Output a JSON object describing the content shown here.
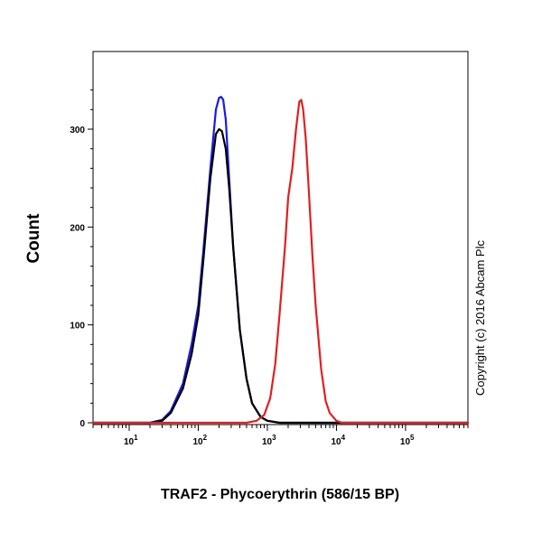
{
  "chart_data": {
    "type": "line",
    "title": "",
    "xlabel": "TRAF2 - Phycoerythrin (586/15 BP)",
    "ylabel": "Count",
    "x_scale": "log",
    "xlim": [
      3,
      800000
    ],
    "ylim": [
      0,
      350
    ],
    "x_ticks": [
      {
        "value": 10,
        "base": "10",
        "exp": "1"
      },
      {
        "value": 100,
        "base": "10",
        "exp": "2"
      },
      {
        "value": 1000,
        "base": "10",
        "exp": "3"
      },
      {
        "value": 10000,
        "base": "10",
        "exp": "4"
      },
      {
        "value": 100000,
        "base": "10",
        "exp": "5"
      }
    ],
    "y_ticks": [
      "0",
      "100",
      "200",
      "300"
    ],
    "grid": false,
    "legend": "none",
    "annotation": "Copyright (c) 2016 Abcam Plc",
    "series": [
      {
        "color": "#1a1ae6",
        "x": [
          3,
          20,
          30,
          40,
          60,
          80,
          100,
          120,
          150,
          180,
          200,
          215,
          230,
          250,
          280,
          320,
          400,
          500,
          600,
          800,
          1000,
          1500,
          2000,
          800000
        ],
        "y": [
          0,
          0,
          3,
          12,
          40,
          80,
          120,
          180,
          260,
          320,
          332,
          333,
          330,
          310,
          250,
          180,
          95,
          45,
          20,
          6,
          2,
          0,
          0,
          0
        ]
      },
      {
        "color": "#000000",
        "x": [
          3,
          20,
          30,
          40,
          60,
          80,
          100,
          120,
          150,
          180,
          200,
          220,
          250,
          280,
          320,
          400,
          500,
          600,
          800,
          1000,
          1500,
          800000
        ],
        "y": [
          0,
          0,
          2,
          10,
          35,
          70,
          110,
          170,
          250,
          295,
          300,
          298,
          280,
          240,
          180,
          95,
          45,
          20,
          6,
          2,
          0,
          0
        ]
      },
      {
        "color": "#e02020",
        "x": [
          3,
          500,
          700,
          900,
          1100,
          1300,
          1500,
          1800,
          2000,
          2300,
          2600,
          2900,
          3100,
          3300,
          3600,
          4000,
          4500,
          5000,
          6000,
          7000,
          8000,
          10000,
          12000,
          800000
        ],
        "y": [
          0,
          0,
          2,
          8,
          25,
          60,
          110,
          180,
          230,
          260,
          300,
          328,
          330,
          320,
          290,
          235,
          170,
          120,
          55,
          22,
          10,
          2,
          0,
          0
        ]
      }
    ]
  }
}
